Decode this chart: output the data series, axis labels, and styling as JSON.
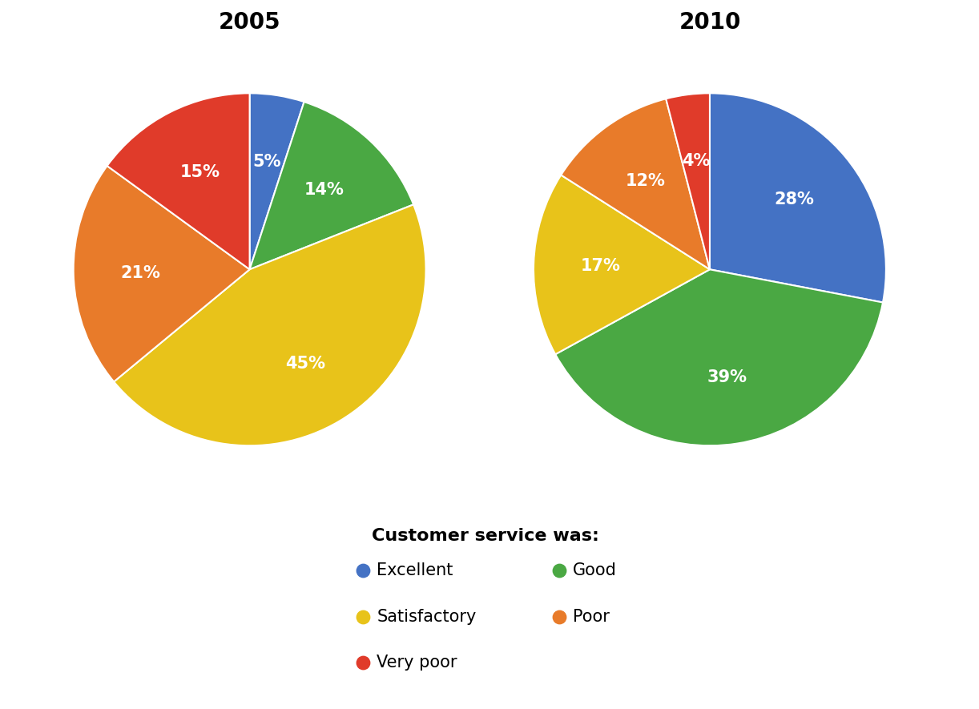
{
  "year2005": {
    "title": "2005",
    "labels": [
      "Excellent",
      "Good",
      "Satisfactory",
      "Poor",
      "Very poor"
    ],
    "values": [
      5,
      14,
      45,
      21,
      15
    ],
    "colors": [
      "#4472C4",
      "#4AA843",
      "#E8C31A",
      "#E87B2A",
      "#E03B2A"
    ],
    "start_angle": 90
  },
  "year2010": {
    "title": "2010",
    "labels": [
      "Excellent",
      "Good",
      "Satisfactory",
      "Poor",
      "Very poor"
    ],
    "values": [
      28,
      39,
      17,
      12,
      4
    ],
    "colors": [
      "#4472C4",
      "#4AA843",
      "#E8C31A",
      "#E87B2A",
      "#E03B2A"
    ],
    "start_angle": 90
  },
  "legend_title": "Customer service was:",
  "legend_items": [
    {
      "label": "Excellent",
      "color": "#4472C4"
    },
    {
      "label": "Good",
      "color": "#4AA843"
    },
    {
      "label": "Satisfactory",
      "color": "#E8C31A"
    },
    {
      "label": "Poor",
      "color": "#E87B2A"
    },
    {
      "label": "Very poor",
      "color": "#E03B2A"
    }
  ],
  "text_color": "white",
  "label_fontsize": 15,
  "title_fontsize": 20,
  "legend_fontsize": 15,
  "legend_title_fontsize": 16,
  "background_color": "#FFFFFF"
}
